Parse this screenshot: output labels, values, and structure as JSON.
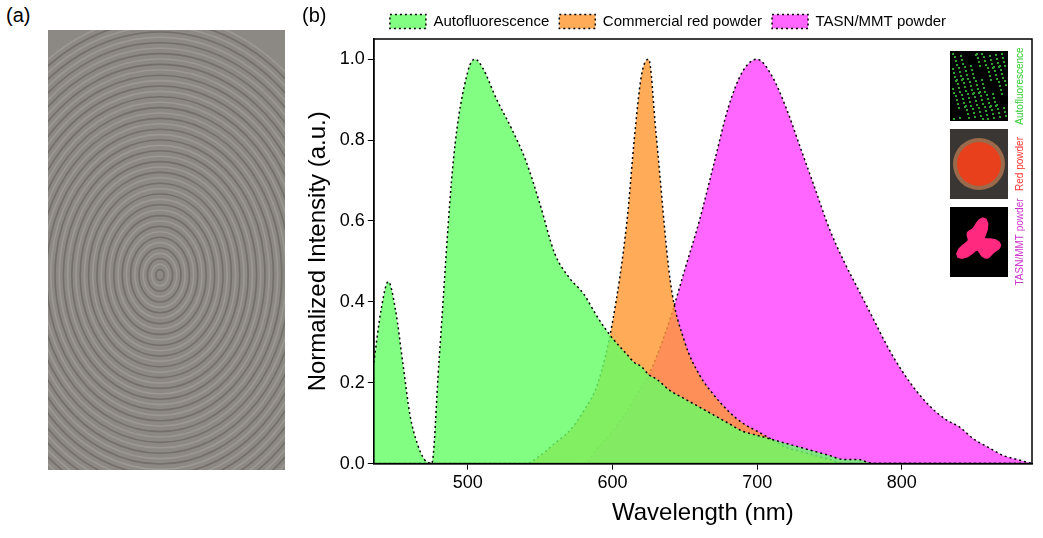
{
  "panel_a": {
    "letter": "(a)"
  },
  "chart_data": {
    "letter": "(b)",
    "type": "area",
    "x_label": "Wavelength (nm)",
    "y_label": "Normalized Intensity (a.u.)",
    "x": [
      435,
      440,
      445,
      450,
      455,
      460,
      465,
      470,
      475,
      480,
      490,
      500,
      505,
      510,
      520,
      530,
      540,
      550,
      560,
      570,
      580,
      590,
      600,
      610,
      615,
      620,
      625,
      630,
      640,
      650,
      660,
      670,
      680,
      690,
      700,
      710,
      720,
      730,
      740,
      750,
      760,
      770,
      780,
      790,
      800,
      810,
      820,
      830,
      840,
      850,
      860,
      870,
      880,
      890
    ],
    "xlim": [
      435,
      890
    ],
    "xticks": [
      500,
      600,
      700,
      800
    ],
    "ylim": [
      0,
      1.05
    ],
    "yticks": [
      {
        "value": 0,
        "label": "0.0"
      },
      0.2,
      0.4,
      0.6,
      0.8,
      {
        "value": 1,
        "label": "1.0"
      }
    ],
    "grid": false,
    "legend": "top",
    "series": [
      {
        "name": "Autofluorescence",
        "color": "#66ff66",
        "line_style": "dotted",
        "values": [
          0.25,
          0.38,
          0.45,
          0.38,
          0.25,
          0.12,
          0.05,
          0.01,
          0,
          0.25,
          0.75,
          0.97,
          1.0,
          0.98,
          0.9,
          0.83,
          0.75,
          0.64,
          0.52,
          0.46,
          0.42,
          0.36,
          0.31,
          0.27,
          0.25,
          0.24,
          0.22,
          0.21,
          0.18,
          0.16,
          0.14,
          0.12,
          0.1,
          0.08,
          0.07,
          0.06,
          0.05,
          0.04,
          0.03,
          0.02,
          0.01,
          0.01,
          0,
          0,
          0,
          0,
          0,
          0,
          0,
          0,
          0,
          0,
          0,
          0
        ]
      },
      {
        "name": "Commercial red powder",
        "color": "#ff9933",
        "line_style": "dotted",
        "values": [
          0,
          0,
          0,
          0,
          0,
          0,
          0,
          0,
          0,
          0,
          0,
          0,
          0,
          0,
          0,
          0,
          0,
          0.02,
          0.05,
          0.08,
          0.13,
          0.2,
          0.35,
          0.6,
          0.8,
          0.96,
          1.0,
          0.82,
          0.45,
          0.3,
          0.22,
          0.17,
          0.13,
          0.1,
          0.08,
          0.06,
          0.04,
          0.03,
          0.02,
          0.01,
          0,
          0,
          0,
          0,
          0,
          0,
          0,
          0,
          0,
          0,
          0,
          0,
          0,
          0
        ]
      },
      {
        "name": "TASN/MMT powder",
        "color": "#ff44ff",
        "line_style": "dotted",
        "values": [
          0,
          0,
          0,
          0,
          0,
          0,
          0,
          0,
          0,
          0,
          0,
          0,
          0,
          0,
          0,
          0,
          0,
          0,
          0,
          0,
          0,
          0.04,
          0.08,
          0.13,
          0.16,
          0.19,
          0.22,
          0.26,
          0.36,
          0.48,
          0.6,
          0.74,
          0.88,
          0.97,
          1.0,
          0.96,
          0.88,
          0.78,
          0.68,
          0.58,
          0.5,
          0.43,
          0.36,
          0.29,
          0.23,
          0.18,
          0.14,
          0.11,
          0.09,
          0.06,
          0.04,
          0.02,
          0.01,
          0
        ]
      }
    ],
    "annotations": [
      {
        "text": "Autofluorescence",
        "color": "#33cc33"
      },
      {
        "text": "Red powder",
        "color": "#ff3333"
      },
      {
        "text": "TASN/MMT powder",
        "color": "#cc33cc"
      }
    ]
  }
}
